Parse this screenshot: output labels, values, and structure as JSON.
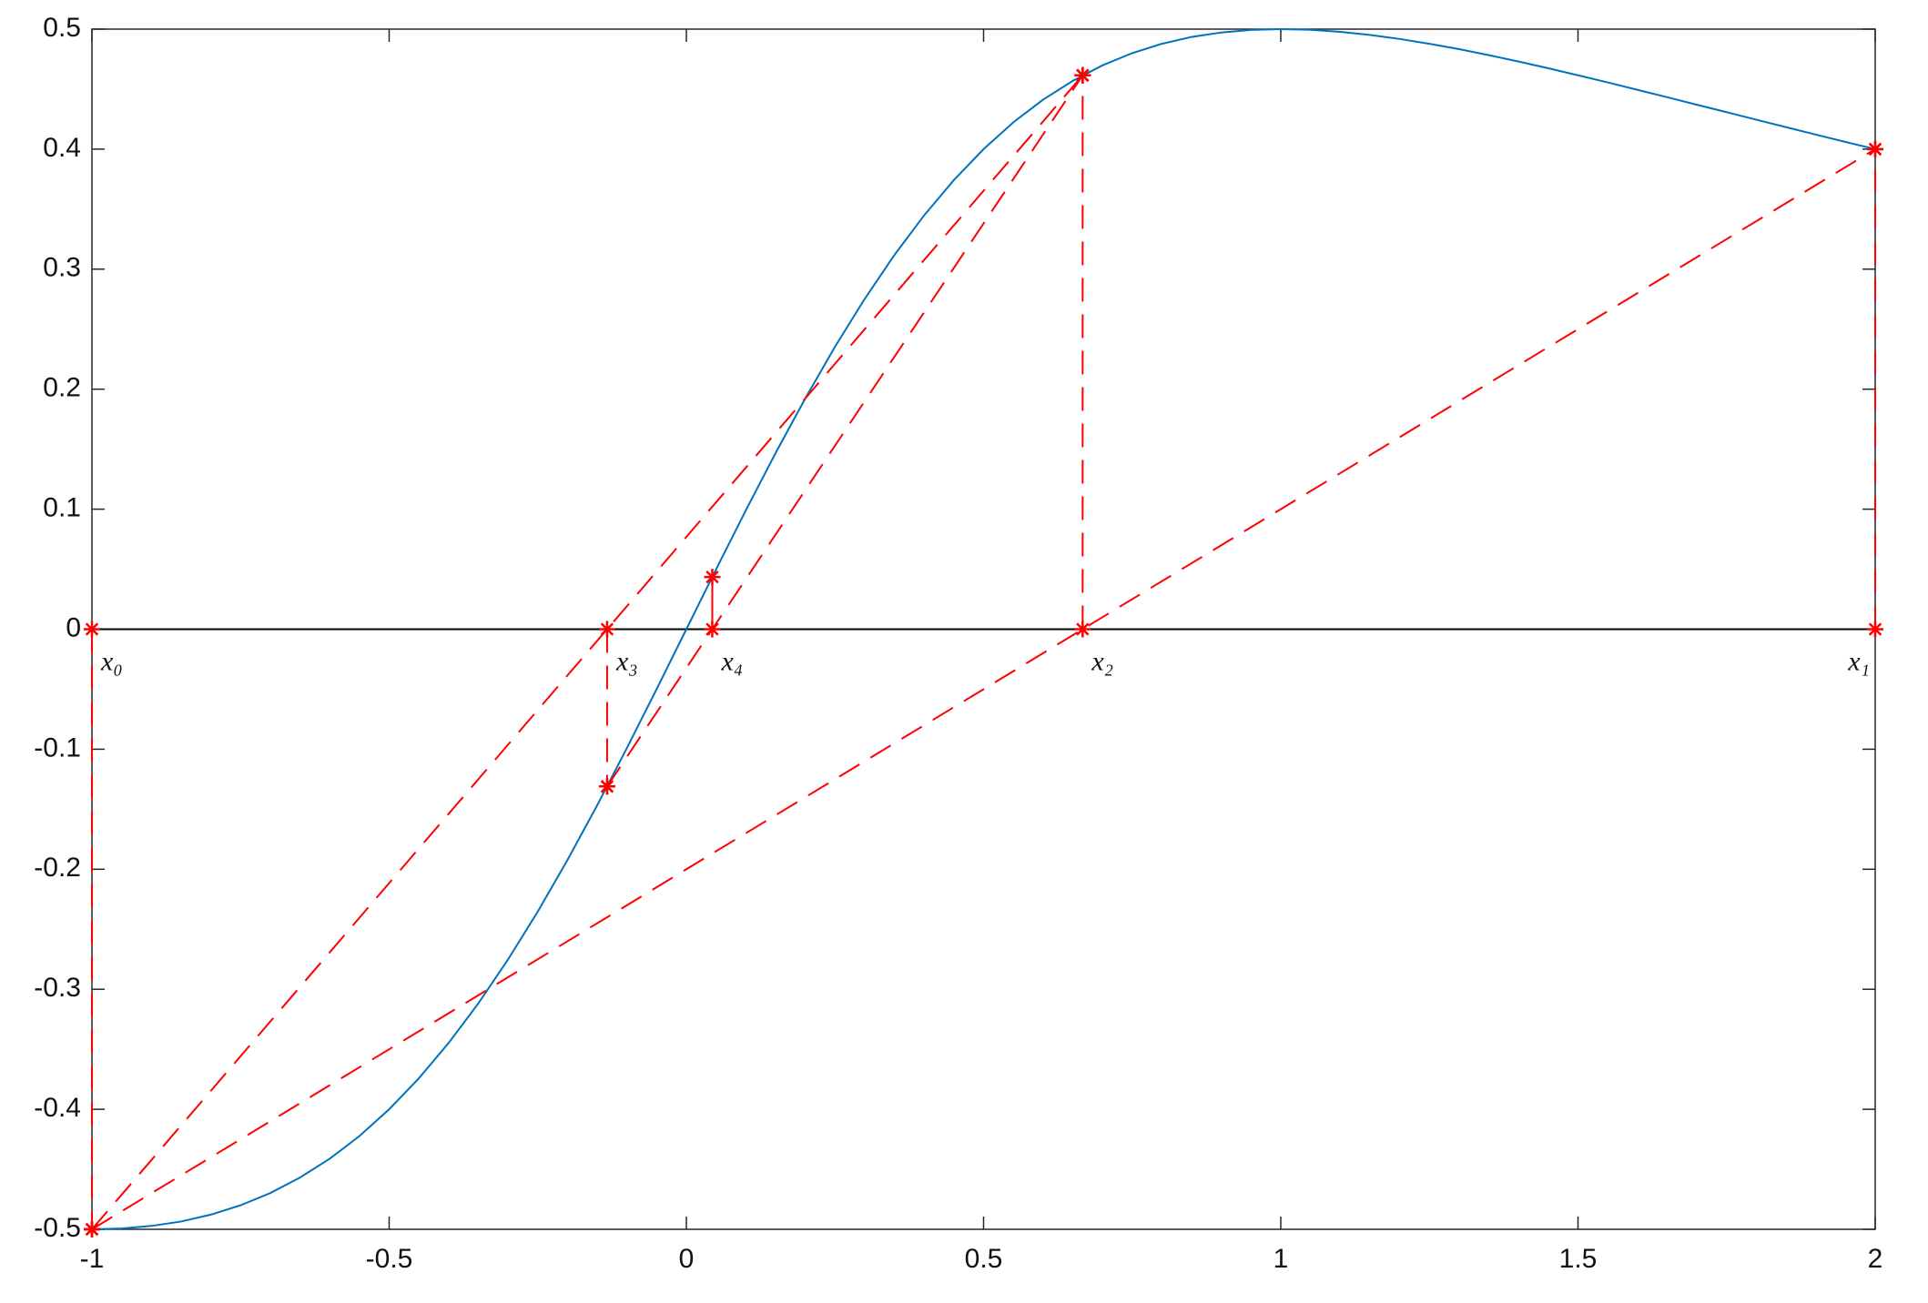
{
  "chart_data": {
    "type": "line",
    "xlim": [
      -1,
      2
    ],
    "ylim": [
      -0.5,
      0.5
    ],
    "xticks": [
      -1,
      -0.5,
      0,
      0.5,
      1,
      1.5,
      2
    ],
    "yticks": [
      -0.5,
      -0.4,
      -0.3,
      -0.2,
      -0.1,
      0,
      0.1,
      0.2,
      0.3,
      0.4,
      0.5
    ],
    "zero_line": true,
    "series": [
      {
        "color": "#0072bd",
        "dashed": false,
        "markers": false,
        "x": [
          -1,
          -0.95,
          -0.9,
          -0.85,
          -0.8,
          -0.75,
          -0.7,
          -0.65,
          -0.6,
          -0.55,
          -0.5,
          -0.45,
          -0.4,
          -0.35,
          -0.3,
          -0.25,
          -0.2,
          -0.15,
          -0.1,
          -0.05,
          0,
          0.05,
          0.1,
          0.15,
          0.2,
          0.25,
          0.3,
          0.35,
          0.4,
          0.45,
          0.5,
          0.55,
          0.6,
          0.65,
          0.7,
          0.75,
          0.8,
          0.85,
          0.9,
          0.95,
          1,
          1.05,
          1.1,
          1.15,
          1.2,
          1.25,
          1.3,
          1.35,
          1.4,
          1.45,
          1.5,
          1.55,
          1.6,
          1.65,
          1.7,
          1.75,
          1.8,
          1.85,
          1.9,
          1.95,
          2
        ],
        "values": [
          -0.5,
          -0.4993,
          -0.4972,
          -0.4935,
          -0.4878,
          -0.48,
          -0.4698,
          -0.4569,
          -0.4412,
          -0.4223,
          -0.4,
          -0.3742,
          -0.3448,
          -0.3118,
          -0.2752,
          -0.2353,
          -0.1923,
          -0.1467,
          -0.099,
          -0.0499,
          0,
          0.0499,
          0.099,
          0.1467,
          0.1923,
          0.2353,
          0.2752,
          0.3118,
          0.3448,
          0.3742,
          0.4,
          0.4223,
          0.4412,
          0.4569,
          0.4698,
          0.48,
          0.4878,
          0.4935,
          0.4972,
          0.4993,
          0.5,
          0.4994,
          0.4977,
          0.4952,
          0.4918,
          0.4878,
          0.4833,
          0.4783,
          0.473,
          0.4674,
          0.4615,
          0.4556,
          0.4494,
          0.4433,
          0.437,
          0.4308,
          0.4245,
          0.4183,
          0.4121,
          0.406,
          0.4
        ]
      },
      {
        "color": "#ff0000",
        "dashed": true,
        "markers": true,
        "x": [
          -1,
          -1
        ],
        "values": [
          0,
          -0.5
        ]
      },
      {
        "color": "#ff0000",
        "dashed": true,
        "markers": true,
        "x": [
          2,
          2
        ],
        "values": [
          0,
          0.4
        ]
      },
      {
        "color": "#ff0000",
        "dashed": true,
        "markers": true,
        "x": [
          -1,
          2
        ],
        "values": [
          -0.5,
          0.4
        ]
      },
      {
        "color": "#ff0000",
        "dashed": true,
        "markers": true,
        "x": [
          0.6667,
          0.6667
        ],
        "values": [
          0,
          0.4615
        ]
      },
      {
        "color": "#ff0000",
        "dashed": true,
        "markers": true,
        "x": [
          -1,
          0.6667
        ],
        "values": [
          -0.5,
          0.4615
        ]
      },
      {
        "color": "#ff0000",
        "dashed": true,
        "markers": true,
        "x": [
          -0.1333,
          -0.1333
        ],
        "values": [
          0,
          -0.131
        ]
      },
      {
        "color": "#ff0000",
        "dashed": true,
        "markers": true,
        "x": [
          -0.1333,
          0.6667
        ],
        "values": [
          -0.131,
          0.4615
        ]
      },
      {
        "color": "#ff0000",
        "dashed": false,
        "markers": true,
        "x": [
          0.0436,
          0.0436
        ],
        "values": [
          0,
          0.0435
        ]
      }
    ],
    "annotations": [
      {
        "text": "x₀",
        "x": -1
      },
      {
        "text": "x₃",
        "x": -0.1333
      },
      {
        "text": "x₄",
        "x": 0.0436
      },
      {
        "text": "x₂",
        "x": 0.6667
      },
      {
        "text": "x₁",
        "x": 2
      }
    ]
  }
}
